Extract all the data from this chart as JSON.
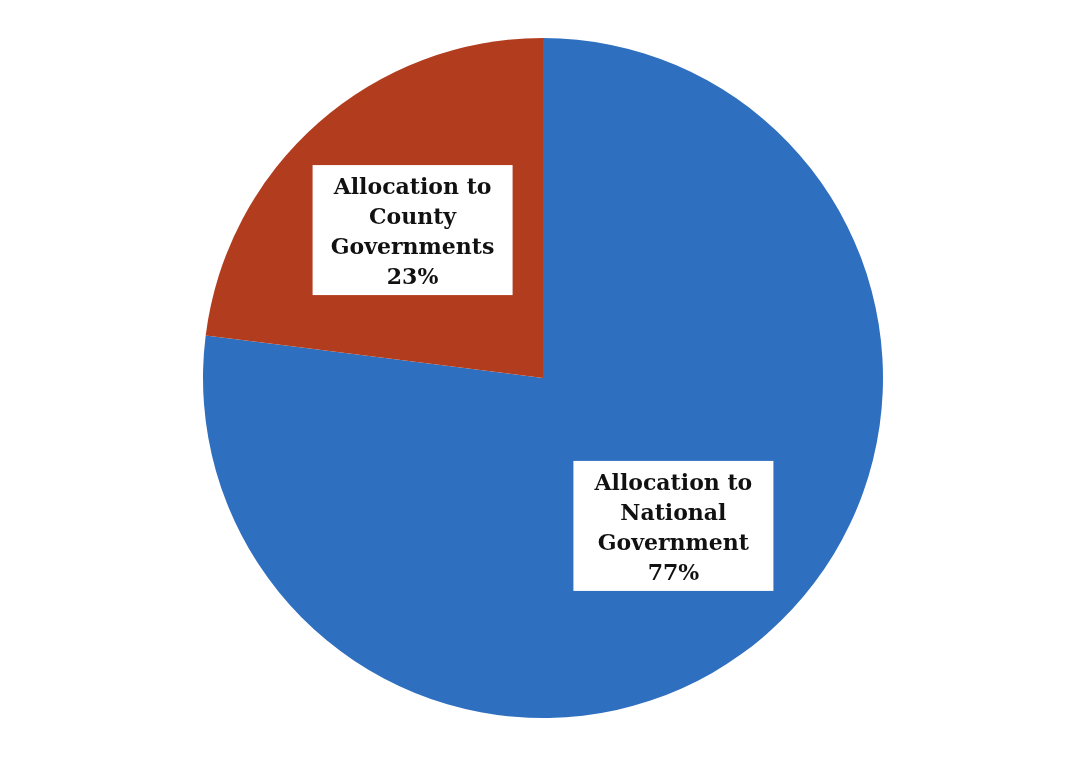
{
  "chart_data": {
    "type": "pie",
    "categories": [
      "Allocation to National Government",
      "Allocation to County Governments"
    ],
    "values": [
      77,
      23
    ],
    "colors": [
      "#2f6fbf",
      "#b23c1e"
    ],
    "value_labels": [
      "77%",
      "23%"
    ],
    "legend": false
  }
}
